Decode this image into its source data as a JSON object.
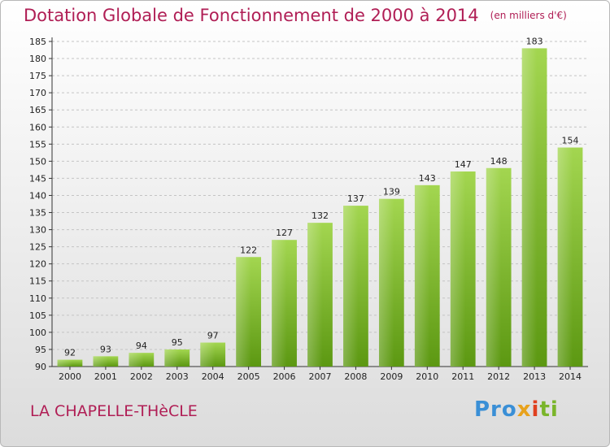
{
  "header": {
    "title": "Dotation Globale de Fonctionnement de 2000 à 2014",
    "subtitle": "(en milliers d'€)"
  },
  "footer": {
    "commune": "LA CHAPELLE-THèCLE",
    "logo": "Proxiti"
  },
  "colors": {
    "title": "#b01e55",
    "bar_light": "#9fd14a",
    "bar_dark": "#5e9a12"
  },
  "chart_data": {
    "type": "bar",
    "title": "Dotation Globale de Fonctionnement de 2000 à 2014",
    "subtitle": "(en milliers d'€)",
    "categories": [
      "2000",
      "2001",
      "2002",
      "2003",
      "2004",
      "2005",
      "2006",
      "2007",
      "2008",
      "2009",
      "2010",
      "2011",
      "2012",
      "2013",
      "2014"
    ],
    "values": [
      92,
      93,
      94,
      95,
      97,
      122,
      127,
      132,
      137,
      139,
      143,
      147,
      148,
      183,
      154
    ],
    "ylim": [
      90,
      185
    ],
    "yticks": [
      90,
      95,
      100,
      105,
      110,
      115,
      120,
      125,
      130,
      135,
      140,
      145,
      150,
      155,
      160,
      165,
      170,
      175,
      180,
      185
    ],
    "grid": true,
    "legend": "none"
  }
}
